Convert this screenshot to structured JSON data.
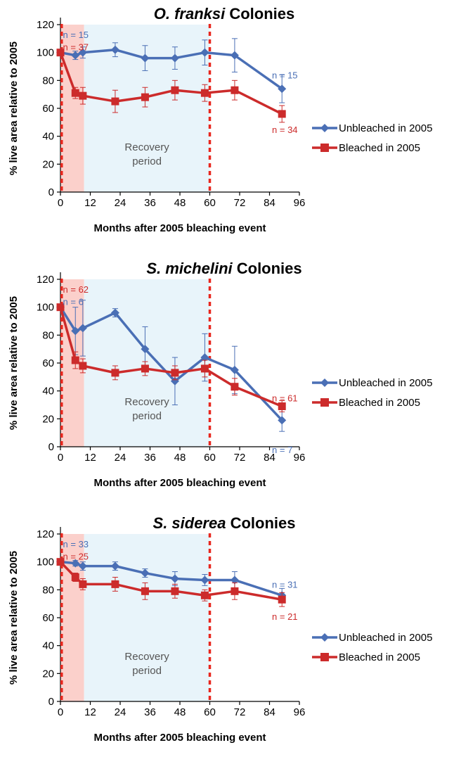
{
  "colors": {
    "unbleached": "#4a6fb5",
    "bleached": "#cc2b2b",
    "bleaching_shade": "#fbd0cb",
    "recovery_shade": "#e8f4fa",
    "event_line": "#e8271e",
    "axis": "#000000"
  },
  "chart_data": [
    {
      "type": "line",
      "title_italic": "O. franksi",
      "title_rest": " Colonies",
      "xlabel": "Months after 2005 bleaching event",
      "ylabel": "% live area relative to 2005",
      "xlim": [
        0,
        96
      ],
      "ylim": [
        0,
        120
      ],
      "xticks": [
        0,
        12,
        24,
        36,
        48,
        60,
        72,
        84,
        96
      ],
      "yticks": [
        0,
        20,
        40,
        60,
        80,
        100,
        120
      ],
      "bleaching_period": [
        0,
        9.5
      ],
      "recovery_period": [
        9.5,
        60
      ],
      "event_lines": [
        0.5,
        60
      ],
      "recovery_label": [
        "Recovery",
        "period"
      ],
      "legend_position": "right",
      "series": [
        {
          "name": "Unbleached in 2005",
          "color_key": "unbleached",
          "marker": "diamond",
          "x": [
            0,
            6,
            9,
            22,
            34,
            46,
            58,
            70,
            89
          ],
          "y": [
            100,
            98,
            100,
            102,
            96,
            96,
            100,
            98,
            74
          ],
          "err": [
            0,
            3,
            4,
            5,
            9,
            8,
            9,
            12,
            10
          ]
        },
        {
          "name": "Bleached in 2005",
          "color_key": "bleached",
          "marker": "square",
          "x": [
            0,
            6,
            9,
            22,
            34,
            46,
            58,
            70,
            89
          ],
          "y": [
            100,
            71,
            69,
            65,
            68,
            73,
            71,
            73,
            56
          ],
          "err": [
            0,
            4,
            6,
            8,
            7,
            7,
            6,
            7,
            6
          ]
        }
      ],
      "annotations": [
        {
          "text": "n = 15",
          "color_key": "unbleached",
          "x": 1,
          "y": 113,
          "anchor": "start"
        },
        {
          "text": "n = 37",
          "color_key": "bleached",
          "x": 1,
          "y": 104,
          "anchor": "start"
        },
        {
          "text": "n = 15",
          "color_key": "unbleached",
          "x": 85,
          "y": 84,
          "anchor": "start"
        },
        {
          "text": "n = 34",
          "color_key": "bleached",
          "x": 85,
          "y": 45,
          "anchor": "start"
        }
      ]
    },
    {
      "type": "line",
      "title_italic": "S. michelini",
      "title_rest": " Colonies",
      "xlabel": "Months after 2005 bleaching event",
      "ylabel": "% live area relative to 2005",
      "xlim": [
        0,
        96
      ],
      "ylim": [
        0,
        120
      ],
      "xticks": [
        0,
        12,
        24,
        36,
        48,
        60,
        72,
        84,
        96
      ],
      "yticks": [
        0,
        20,
        40,
        60,
        80,
        100,
        120
      ],
      "bleaching_period": [
        0,
        9.5
      ],
      "recovery_period": [
        9.5,
        60
      ],
      "event_lines": [
        0.5,
        60
      ],
      "recovery_label": [
        "Recovery",
        "period"
      ],
      "legend_position": "right",
      "series": [
        {
          "name": "Unbleached in 2005",
          "color_key": "unbleached",
          "marker": "diamond",
          "x": [
            0,
            6,
            9,
            22,
            34,
            46,
            58,
            70,
            89
          ],
          "y": [
            100,
            83,
            85,
            96,
            70,
            47,
            64,
            55,
            19
          ],
          "err": [
            0,
            17,
            20,
            3,
            16,
            17,
            17,
            17,
            8
          ]
        },
        {
          "name": "Bleached in 2005",
          "color_key": "bleached",
          "marker": "square",
          "x": [
            0,
            6,
            9,
            22,
            34,
            46,
            58,
            70,
            89
          ],
          "y": [
            100,
            62,
            58,
            53,
            56,
            53,
            56,
            43,
            29
          ],
          "err": [
            0,
            6,
            5,
            5,
            5,
            5,
            6,
            6,
            4
          ]
        }
      ],
      "annotations": [
        {
          "text": "n = 62",
          "color_key": "bleached",
          "x": 1,
          "y": 113,
          "anchor": "start"
        },
        {
          "text": "n = 6",
          "color_key": "unbleached",
          "x": 1,
          "y": 104,
          "anchor": "start"
        },
        {
          "text": "n = 61",
          "color_key": "bleached",
          "x": 85,
          "y": 35,
          "anchor": "start"
        },
        {
          "text": "n = 7",
          "color_key": "unbleached",
          "x": 85,
          "y": -2,
          "anchor": "start"
        }
      ]
    },
    {
      "type": "line",
      "title_italic": "S. siderea",
      "title_rest": " Colonies",
      "xlabel": "Months after 2005 bleaching event",
      "ylabel": "% live area relative to 2005",
      "xlim": [
        0,
        96
      ],
      "ylim": [
        0,
        120
      ],
      "xticks": [
        0,
        12,
        24,
        36,
        48,
        60,
        72,
        84,
        96
      ],
      "yticks": [
        0,
        20,
        40,
        60,
        80,
        100,
        120
      ],
      "bleaching_period": [
        0,
        9.5
      ],
      "recovery_period": [
        9.5,
        60
      ],
      "event_lines": [
        0.5,
        60
      ],
      "recovery_label": [
        "Recovery",
        "period"
      ],
      "legend_position": "right",
      "series": [
        {
          "name": "Unbleached in 2005",
          "color_key": "unbleached",
          "marker": "diamond",
          "x": [
            0,
            6,
            9,
            22,
            34,
            46,
            58,
            70,
            89
          ],
          "y": [
            100,
            99,
            97,
            97,
            92,
            88,
            87,
            87,
            76
          ],
          "err": [
            0,
            2,
            3,
            3,
            3,
            5,
            4,
            6,
            5
          ]
        },
        {
          "name": "Bleached in 2005",
          "color_key": "bleached",
          "marker": "square",
          "x": [
            0,
            6,
            9,
            22,
            34,
            46,
            58,
            70,
            89
          ],
          "y": [
            100,
            89,
            84,
            84,
            79,
            79,
            76,
            79,
            73
          ],
          "err": [
            0,
            3,
            4,
            5,
            6,
            5,
            4,
            6,
            5
          ]
        }
      ],
      "annotations": [
        {
          "text": "n = 33",
          "color_key": "unbleached",
          "x": 1,
          "y": 113,
          "anchor": "start"
        },
        {
          "text": "n = 25",
          "color_key": "bleached",
          "x": 1,
          "y": 104,
          "anchor": "start"
        },
        {
          "text": "n = 31",
          "color_key": "unbleached",
          "x": 85,
          "y": 84,
          "anchor": "start"
        },
        {
          "text": "n = 21",
          "color_key": "bleached",
          "x": 85,
          "y": 61,
          "anchor": "start"
        }
      ]
    }
  ]
}
